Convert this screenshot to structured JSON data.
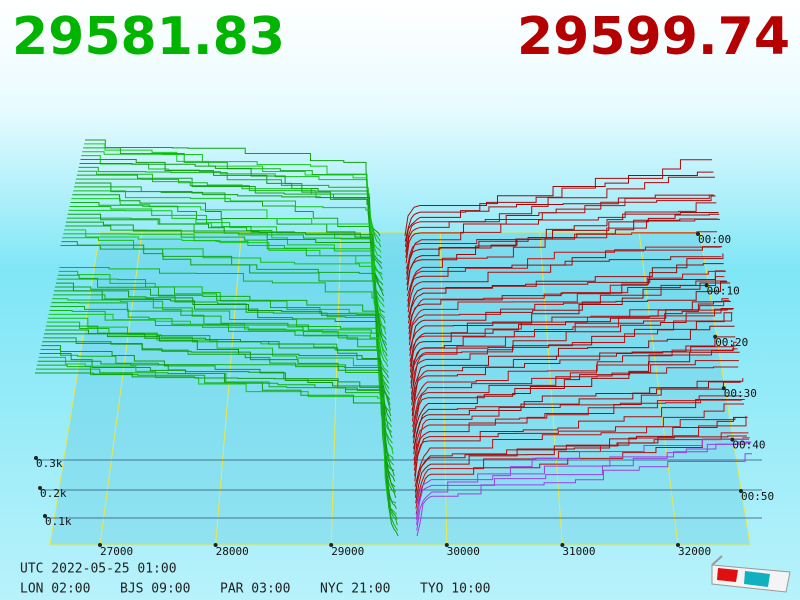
{
  "header": {
    "bid_price": "29581.83",
    "ask_price": "29599.74"
  },
  "price_axis": {
    "ticks": [
      "27000",
      "28000",
      "29000",
      "30000",
      "31000",
      "32000"
    ]
  },
  "time_axis": {
    "ticks": [
      "00:00",
      "00:10",
      "00:20",
      "00:30",
      "00:40",
      "00:50"
    ]
  },
  "depth_axis": {
    "ticks": [
      "0.3k",
      "0.2k",
      "0.1k"
    ]
  },
  "footer": {
    "utc": "UTC 2022-05-25 01:00",
    "cities": [
      "LON 02:00",
      "BJS 09:00",
      "PAR 03:00",
      "NYC 21:00",
      "TYO 10:00"
    ]
  }
}
